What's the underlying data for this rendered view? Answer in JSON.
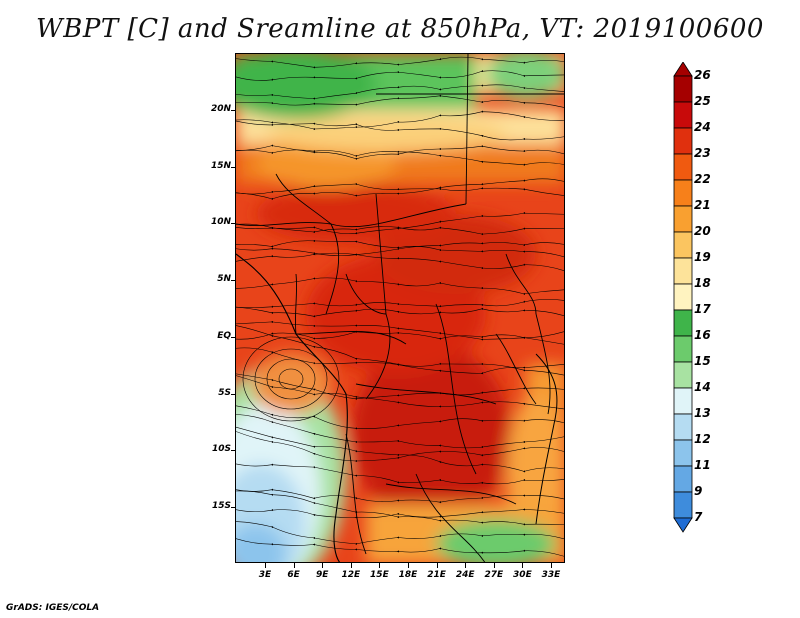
{
  "title": "WBPT [C] and Sreamline at 850hPa, VT: 2019100600",
  "credit": "GrADS: IGES/COLA",
  "latitude_labels": [
    "20N",
    "15N",
    "10N",
    "5N",
    "EQ",
    "5S",
    "10S",
    "15S"
  ],
  "longitude_labels": [
    "3E",
    "6E",
    "9E",
    "12E",
    "15E",
    "18E",
    "21E",
    "24E",
    "27E",
    "30E",
    "33E"
  ],
  "colorbar": {
    "labels": [
      "26",
      "25",
      "24",
      "23",
      "22",
      "21",
      "20",
      "19",
      "18",
      "17",
      "16",
      "15",
      "14",
      "13",
      "12",
      "11",
      "9",
      "7"
    ],
    "colors": [
      "#a50000",
      "#c80a0a",
      "#e0300e",
      "#f05a10",
      "#f7801a",
      "#f9a030",
      "#fbc560",
      "#fde39a",
      "#fff3c0",
      "#3fb44a",
      "#6ccb6c",
      "#a8e2a2",
      "#e0f4f8",
      "#b5dcf2",
      "#8cc4ec",
      "#64a8e4",
      "#3e8cdc",
      "#1e6cd4"
    ]
  }
}
